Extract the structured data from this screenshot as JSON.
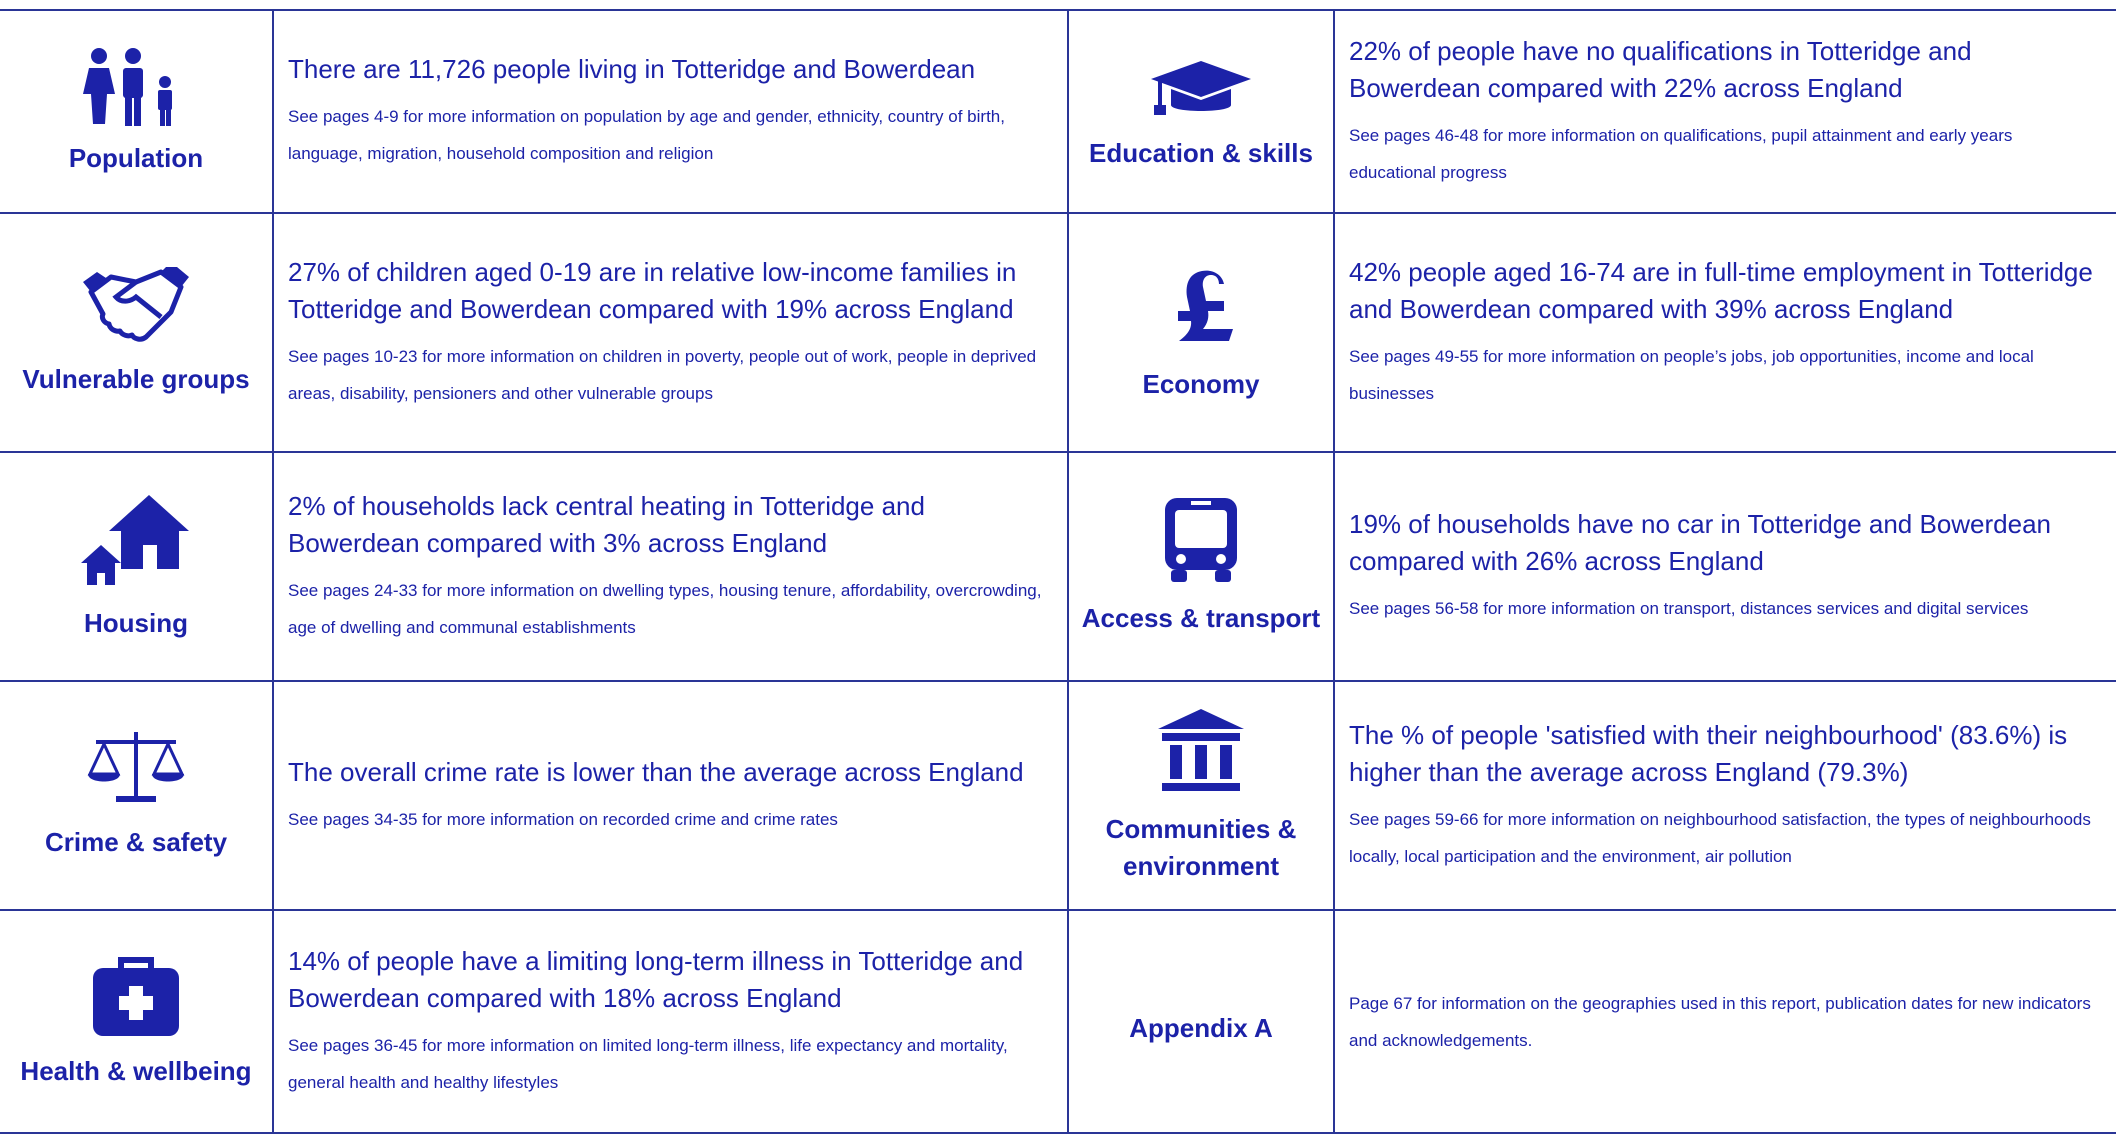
{
  "rows": [
    {
      "left": {
        "label": "Population",
        "headline": "There are 11,726 people living in Totteridge and Bowerdean",
        "detail": "See pages 4-9 for more information on population by age and gender, ethnicity, country of birth, language, migration, household composition and religion"
      },
      "right": {
        "label": "Education & skills",
        "headline": "22% of people have no qualifications in Totteridge and Bowerdean compared with 22% across England",
        "detail": "See pages 46-48 for more information on qualifications, pupil attainment and early years educational progress"
      }
    },
    {
      "left": {
        "label": "Vulnerable groups",
        "headline": "27% of children aged 0-19 are in relative low-income families in Totteridge and Bowerdean compared with 19% across England",
        "detail": "See pages 10-23 for more information on children in poverty, people out of work, people in deprived areas, disability, pensioners and other vulnerable groups"
      },
      "right": {
        "label": "Economy",
        "headline": "42% people aged 16-74 are in full-time employment in Totteridge and Bowerdean compared with 39% across England",
        "detail": "See pages 49-55 for more information on people’s jobs, job opportunities, income and local businesses"
      }
    },
    {
      "left": {
        "label": "Housing",
        "headline": "2% of households lack central heating in Totteridge and Bowerdean compared with 3% across England",
        "detail": "See pages 24-33 for more information on dwelling types, housing tenure, affordability, overcrowding, age of dwelling and communal establishments"
      },
      "right": {
        "label": "Access & transport",
        "headline": "19% of households have no car in Totteridge and Bowerdean compared with 26% across England",
        "detail": "See pages 56-58 for more information on transport, distances services and digital services"
      }
    },
    {
      "left": {
        "label": "Crime & safety",
        "headline": "The overall crime rate is lower than the average across England",
        "detail": "See pages 34-35 for more information on recorded crime and crime rates"
      },
      "right": {
        "label": "Communities & environment",
        "headline": "The % of people 'satisfied with their neighbourhood' (83.6%) is higher than the average across England (79.3%)",
        "detail": "See pages 59-66 for more information on neighbourhood satisfaction, the types of neighbourhoods locally, local participation and the environment, air pollution"
      }
    },
    {
      "left": {
        "label": "Health & wellbeing",
        "headline": "14% of people have a limiting long-term illness in Totteridge and Bowerdean compared with 18% across England",
        "detail": "See pages 36-45 for more information on limited long-term illness, life expectancy and mortality, general health and healthy lifestyles"
      },
      "right": {
        "label": "Appendix A",
        "detail": "Page 67 for information on the geographies used in this report, publication dates for new indicators and acknowledgements."
      }
    }
  ]
}
